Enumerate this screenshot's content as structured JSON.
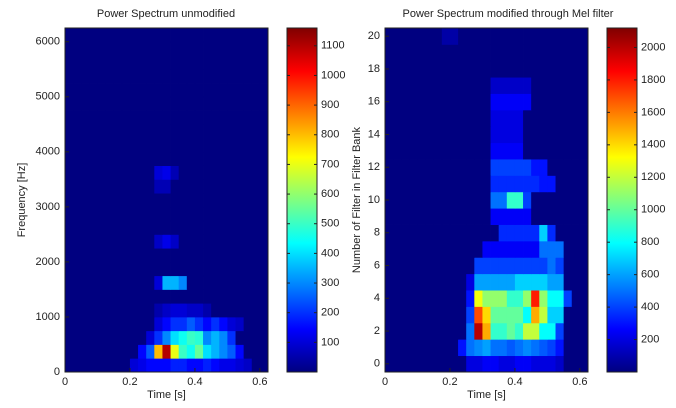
{
  "chart_data": [
    {
      "type": "heatmap",
      "title": "Power Spectrum unmodified",
      "xlabel": "Time [s]",
      "ylabel": "Frequency [Hz]",
      "colormap": "jet",
      "x": [
        0.0125,
        0.0375,
        0.0625,
        0.0875,
        0.1125,
        0.1375,
        0.1625,
        0.1875,
        0.2125,
        0.2375,
        0.2625,
        0.2875,
        0.3125,
        0.3375,
        0.3625,
        0.3875,
        0.4125,
        0.4375,
        0.4625,
        0.4875,
        0.5125,
        0.5375,
        0.5625,
        0.5875,
        0.6125
      ],
      "y": [
        125,
        375,
        625,
        875,
        1125,
        1375,
        1625,
        1875,
        2125,
        2375,
        2625,
        2875,
        3125,
        3375,
        3625,
        3875,
        4125,
        4375,
        4625,
        4875,
        5125,
        5375,
        5625,
        5875,
        6125
      ],
      "z": [
        [
          0,
          0,
          0,
          0,
          0,
          0,
          0,
          0,
          100,
          120,
          150,
          150,
          150,
          180,
          180,
          150,
          150,
          180,
          150,
          120,
          120,
          100,
          80,
          0,
          0
        ],
        [
          0,
          0,
          0,
          0,
          0,
          0,
          0,
          0,
          0,
          150,
          250,
          800,
          1100,
          700,
          500,
          450,
          550,
          400,
          350,
          300,
          250,
          150,
          0,
          0,
          0
        ],
        [
          0,
          0,
          0,
          0,
          0,
          0,
          0,
          0,
          0,
          0,
          100,
          200,
          300,
          400,
          450,
          500,
          480,
          300,
          350,
          300,
          200,
          0,
          0,
          0,
          0
        ],
        [
          0,
          0,
          0,
          0,
          0,
          0,
          0,
          0,
          0,
          0,
          0,
          100,
          150,
          200,
          200,
          250,
          200,
          150,
          200,
          150,
          100,
          80,
          0,
          0,
          0
        ],
        [
          0,
          0,
          0,
          0,
          0,
          0,
          0,
          0,
          0,
          0,
          0,
          50,
          80,
          100,
          100,
          80,
          80,
          50,
          0,
          0,
          0,
          0,
          0,
          0,
          0
        ],
        [
          0,
          0,
          0,
          0,
          0,
          0,
          0,
          0,
          0,
          0,
          0,
          0,
          0,
          0,
          0,
          0,
          0,
          0,
          0,
          0,
          0,
          0,
          0,
          0,
          0
        ],
        [
          0,
          0,
          0,
          0,
          0,
          0,
          0,
          0,
          0,
          0,
          0,
          100,
          350,
          350,
          300,
          0,
          0,
          0,
          0,
          0,
          0,
          0,
          0,
          0,
          0
        ],
        [
          0,
          0,
          0,
          0,
          0,
          0,
          0,
          0,
          0,
          0,
          0,
          0,
          0,
          0,
          0,
          0,
          0,
          0,
          0,
          0,
          0,
          0,
          0,
          0,
          0
        ],
        [
          0,
          0,
          0,
          0,
          0,
          0,
          0,
          0,
          0,
          0,
          0,
          0,
          0,
          0,
          0,
          0,
          0,
          0,
          0,
          0,
          0,
          0,
          0,
          0,
          0
        ],
        [
          0,
          0,
          0,
          0,
          0,
          0,
          0,
          0,
          0,
          0,
          0,
          80,
          120,
          80,
          0,
          0,
          0,
          0,
          0,
          0,
          0,
          0,
          0,
          0,
          0
        ],
        [
          0,
          0,
          0,
          0,
          0,
          0,
          0,
          0,
          0,
          0,
          0,
          0,
          0,
          0,
          0,
          0,
          0,
          0,
          0,
          0,
          0,
          0,
          0,
          0,
          0
        ],
        [
          0,
          0,
          0,
          0,
          0,
          0,
          0,
          0,
          0,
          0,
          0,
          0,
          0,
          0,
          0,
          0,
          0,
          0,
          0,
          0,
          0,
          0,
          0,
          0,
          0
        ],
        [
          0,
          0,
          0,
          0,
          0,
          0,
          0,
          0,
          0,
          0,
          0,
          0,
          0,
          0,
          0,
          0,
          0,
          0,
          0,
          0,
          0,
          0,
          0,
          0,
          0
        ],
        [
          0,
          0,
          0,
          0,
          0,
          0,
          0,
          0,
          0,
          0,
          0,
          60,
          60,
          0,
          0,
          0,
          0,
          0,
          0,
          0,
          0,
          0,
          0,
          0,
          0
        ],
        [
          0,
          0,
          0,
          0,
          0,
          0,
          0,
          0,
          0,
          0,
          0,
          100,
          120,
          60,
          0,
          0,
          0,
          0,
          0,
          0,
          0,
          0,
          0,
          0,
          0
        ],
        [
          0,
          0,
          0,
          0,
          0,
          0,
          0,
          0,
          0,
          0,
          0,
          0,
          0,
          0,
          0,
          0,
          0,
          0,
          0,
          0,
          0,
          0,
          0,
          0,
          0
        ],
        [
          0,
          0,
          0,
          0,
          0,
          0,
          0,
          0,
          0,
          0,
          0,
          0,
          0,
          0,
          0,
          0,
          0,
          0,
          0,
          0,
          0,
          0,
          0,
          0,
          0
        ],
        [
          0,
          0,
          0,
          0,
          0,
          0,
          0,
          0,
          0,
          0,
          0,
          0,
          0,
          0,
          0,
          0,
          0,
          0,
          0,
          0,
          0,
          0,
          0,
          0,
          0
        ],
        [
          0,
          0,
          0,
          0,
          0,
          0,
          0,
          0,
          0,
          0,
          0,
          0,
          0,
          0,
          0,
          0,
          0,
          0,
          0,
          0,
          0,
          0,
          0,
          0,
          0
        ],
        [
          0,
          0,
          0,
          0,
          0,
          0,
          0,
          0,
          0,
          0,
          0,
          0,
          0,
          0,
          0,
          0,
          0,
          0,
          0,
          0,
          0,
          0,
          0,
          0,
          0
        ],
        [
          0,
          0,
          0,
          0,
          0,
          0,
          0,
          0,
          0,
          0,
          0,
          0,
          0,
          0,
          0,
          0,
          0,
          0,
          0,
          0,
          0,
          0,
          0,
          0,
          0
        ],
        [
          0,
          0,
          0,
          0,
          0,
          0,
          0,
          0,
          0,
          0,
          0,
          0,
          0,
          0,
          0,
          0,
          0,
          0,
          0,
          0,
          0,
          0,
          0,
          0,
          0
        ],
        [
          0,
          0,
          0,
          0,
          0,
          0,
          0,
          0,
          0,
          0,
          0,
          0,
          0,
          0,
          0,
          0,
          0,
          0,
          0,
          0,
          0,
          0,
          0,
          0,
          0
        ],
        [
          0,
          0,
          0,
          0,
          0,
          0,
          0,
          0,
          0,
          0,
          0,
          0,
          0,
          0,
          0,
          0,
          0,
          0,
          0,
          0,
          0,
          0,
          0,
          0,
          0
        ],
        [
          0,
          0,
          0,
          0,
          0,
          0,
          0,
          0,
          0,
          0,
          0,
          0,
          0,
          0,
          0,
          0,
          0,
          0,
          0,
          0,
          0,
          0,
          0,
          0,
          0
        ]
      ],
      "xlim": [
        0,
        0.625
      ],
      "ylim": [
        0,
        6250
      ],
      "xticks": [
        0,
        0.2,
        0.4,
        0.6
      ],
      "yticks": [
        0,
        1000,
        2000,
        3000,
        4000,
        5000,
        6000
      ],
      "clim": [
        0,
        1160
      ],
      "cticks": [
        100,
        200,
        300,
        400,
        500,
        600,
        700,
        800,
        900,
        1000,
        1100
      ]
    },
    {
      "type": "heatmap",
      "title": "Power Spectrum modified through Mel filter",
      "xlabel": "Time [s]",
      "ylabel": "Number of Filter in Filter Bank",
      "colormap": "jet",
      "x": [
        0.0125,
        0.0375,
        0.0625,
        0.0875,
        0.1125,
        0.1375,
        0.1625,
        0.1875,
        0.2125,
        0.2375,
        0.2625,
        0.2875,
        0.3125,
        0.3375,
        0.3625,
        0.3875,
        0.4125,
        0.4375,
        0.4625,
        0.4875,
        0.5125,
        0.5375,
        0.5625,
        0.5875,
        0.6125
      ],
      "y": [
        0,
        1,
        2,
        3,
        4,
        5,
        6,
        7,
        8,
        9,
        10,
        11,
        12,
        13,
        14,
        15,
        16,
        17,
        18,
        19,
        20
      ],
      "z": [
        [
          0,
          0,
          0,
          0,
          0,
          0,
          0,
          0,
          0,
          0,
          200,
          200,
          250,
          250,
          200,
          200,
          250,
          250,
          200,
          200,
          200,
          150,
          0,
          0,
          0
        ],
        [
          0,
          0,
          0,
          0,
          0,
          0,
          0,
          0,
          0,
          300,
          500,
          550,
          600,
          500,
          500,
          450,
          500,
          550,
          500,
          450,
          400,
          300,
          0,
          0,
          0
        ],
        [
          0,
          0,
          0,
          0,
          0,
          0,
          0,
          0,
          0,
          0,
          500,
          2000,
          1500,
          900,
          900,
          1000,
          900,
          1200,
          1200,
          800,
          800,
          400,
          0,
          0,
          0
        ],
        [
          0,
          0,
          0,
          0,
          0,
          0,
          0,
          0,
          0,
          0,
          400,
          1700,
          1400,
          1000,
          1000,
          1000,
          1000,
          800,
          1500,
          1200,
          700,
          700,
          0,
          0,
          0
        ],
        [
          0,
          0,
          0,
          0,
          0,
          0,
          0,
          0,
          0,
          0,
          300,
          1300,
          1100,
          1100,
          1100,
          900,
          900,
          1100,
          1800,
          1100,
          800,
          800,
          400,
          0,
          0
        ],
        [
          0,
          0,
          0,
          0,
          0,
          0,
          0,
          0,
          0,
          0,
          200,
          600,
          600,
          600,
          600,
          600,
          700,
          700,
          700,
          700,
          600,
          600,
          0,
          0,
          0
        ],
        [
          0,
          0,
          0,
          0,
          0,
          0,
          0,
          0,
          0,
          0,
          0,
          400,
          400,
          400,
          400,
          400,
          400,
          400,
          400,
          400,
          500,
          400,
          0,
          0,
          0
        ],
        [
          0,
          0,
          0,
          0,
          0,
          0,
          0,
          0,
          0,
          0,
          0,
          0,
          250,
          250,
          250,
          250,
          250,
          250,
          250,
          500,
          500,
          500,
          0,
          0,
          0
        ],
        [
          0,
          0,
          0,
          0,
          0,
          0,
          0,
          0,
          0,
          0,
          0,
          0,
          0,
          0,
          350,
          350,
          350,
          350,
          350,
          700,
          350,
          0,
          0,
          0,
          0
        ],
        [
          0,
          0,
          0,
          0,
          0,
          0,
          0,
          0,
          0,
          0,
          0,
          0,
          0,
          250,
          250,
          250,
          250,
          250,
          0,
          0,
          0,
          0,
          0,
          0,
          0
        ],
        [
          0,
          0,
          0,
          0,
          0,
          0,
          0,
          0,
          0,
          0,
          0,
          0,
          0,
          500,
          500,
          900,
          900,
          400,
          0,
          0,
          0,
          0,
          0,
          0,
          0
        ],
        [
          0,
          0,
          0,
          0,
          0,
          0,
          0,
          0,
          0,
          0,
          0,
          0,
          0,
          350,
          350,
          350,
          350,
          350,
          350,
          300,
          300,
          0,
          0,
          0,
          0
        ],
        [
          0,
          0,
          0,
          0,
          0,
          0,
          0,
          0,
          0,
          0,
          0,
          0,
          0,
          400,
          400,
          400,
          400,
          400,
          300,
          300,
          0,
          0,
          0,
          0,
          0
        ],
        [
          0,
          0,
          0,
          0,
          0,
          0,
          0,
          0,
          0,
          0,
          0,
          0,
          0,
          250,
          250,
          250,
          250,
          0,
          0,
          0,
          0,
          0,
          0,
          0,
          0
        ],
        [
          0,
          0,
          0,
          0,
          0,
          0,
          0,
          0,
          0,
          0,
          0,
          0,
          0,
          200,
          200,
          200,
          200,
          0,
          0,
          0,
          0,
          0,
          0,
          0,
          0
        ],
        [
          0,
          0,
          0,
          0,
          0,
          0,
          0,
          0,
          0,
          0,
          0,
          0,
          0,
          200,
          200,
          200,
          200,
          0,
          0,
          0,
          0,
          0,
          0,
          0,
          0
        ],
        [
          0,
          0,
          0,
          0,
          0,
          0,
          0,
          0,
          0,
          0,
          0,
          0,
          0,
          250,
          250,
          250,
          250,
          250,
          0,
          0,
          0,
          0,
          0,
          0,
          0
        ],
        [
          0,
          0,
          0,
          0,
          0,
          0,
          0,
          0,
          0,
          0,
          0,
          0,
          0,
          150,
          150,
          150,
          150,
          150,
          0,
          0,
          0,
          0,
          0,
          0,
          0
        ],
        [
          0,
          0,
          0,
          0,
          0,
          0,
          0,
          0,
          0,
          0,
          0,
          0,
          0,
          0,
          0,
          0,
          0,
          0,
          0,
          0,
          0,
          0,
          0,
          0,
          0
        ],
        [
          0,
          0,
          0,
          0,
          0,
          0,
          0,
          0,
          0,
          0,
          0,
          0,
          0,
          0,
          0,
          0,
          0,
          0,
          0,
          0,
          0,
          0,
          0,
          0,
          0
        ],
        [
          0,
          0,
          0,
          0,
          0,
          0,
          0,
          80,
          80,
          0,
          0,
          0,
          0,
          0,
          0,
          0,
          0,
          0,
          0,
          0,
          0,
          0,
          0,
          0,
          0
        ]
      ],
      "xlim": [
        0,
        0.625
      ],
      "ylim": [
        -0.5,
        20.5
      ],
      "xticks": [
        0,
        0.2,
        0.4,
        0.6
      ],
      "yticks": [
        0,
        2,
        4,
        6,
        8,
        10,
        12,
        14,
        16,
        18,
        20
      ],
      "clim": [
        0,
        2120
      ],
      "cticks": [
        200,
        400,
        600,
        800,
        1000,
        1200,
        1400,
        1600,
        1800,
        2000
      ]
    }
  ]
}
